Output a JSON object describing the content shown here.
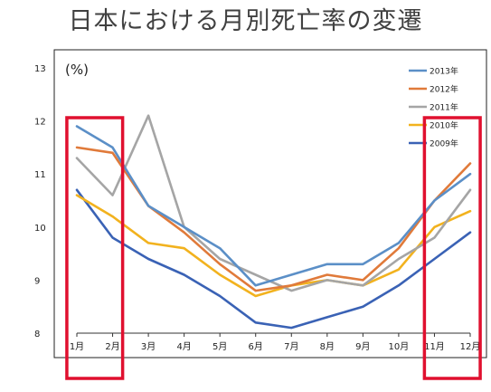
{
  "title": "日本における月別死亡率の変遷",
  "chart_data": {
    "type": "line",
    "unit_label": "(%)",
    "categories": [
      "1月",
      "2月",
      "3月",
      "4月",
      "5月",
      "6月",
      "7月",
      "8月",
      "9月",
      "10月",
      "11月",
      "12月"
    ],
    "ylim": [
      8,
      13
    ],
    "yticks": [
      8,
      9,
      10,
      11,
      12,
      13
    ],
    "grid": false,
    "legend_position": "top-right",
    "series": [
      {
        "name": "2013年",
        "color": "#5b8fc7",
        "values": [
          11.9,
          11.5,
          10.4,
          10.0,
          9.6,
          8.9,
          9.1,
          9.3,
          9.3,
          9.7,
          10.5,
          11.0
        ]
      },
      {
        "name": "2012年",
        "color": "#e07a3a",
        "values": [
          11.5,
          11.4,
          10.4,
          9.9,
          9.3,
          8.8,
          8.9,
          9.1,
          9.0,
          9.6,
          10.5,
          11.2
        ]
      },
      {
        "name": "2011年",
        "color": "#a5a5a5",
        "values": [
          11.3,
          10.6,
          12.1,
          10.0,
          9.4,
          9.1,
          8.8,
          9.0,
          8.9,
          9.4,
          9.8,
          10.7
        ]
      },
      {
        "name": "2010年",
        "color": "#f2b21e",
        "values": [
          10.6,
          10.2,
          9.7,
          9.6,
          9.1,
          8.7,
          8.9,
          9.0,
          8.9,
          9.2,
          10.0,
          10.3
        ]
      },
      {
        "name": "2009年",
        "color": "#3a62b5",
        "values": [
          10.7,
          9.8,
          9.4,
          9.1,
          8.7,
          8.2,
          8.1,
          8.3,
          8.5,
          8.9,
          9.4,
          9.9
        ]
      }
    ],
    "highlight_color": "#e0102f",
    "highlights": [
      {
        "from_category": "1月",
        "to_category": "2月"
      },
      {
        "from_category": "11月",
        "to_category": "12月"
      }
    ]
  }
}
